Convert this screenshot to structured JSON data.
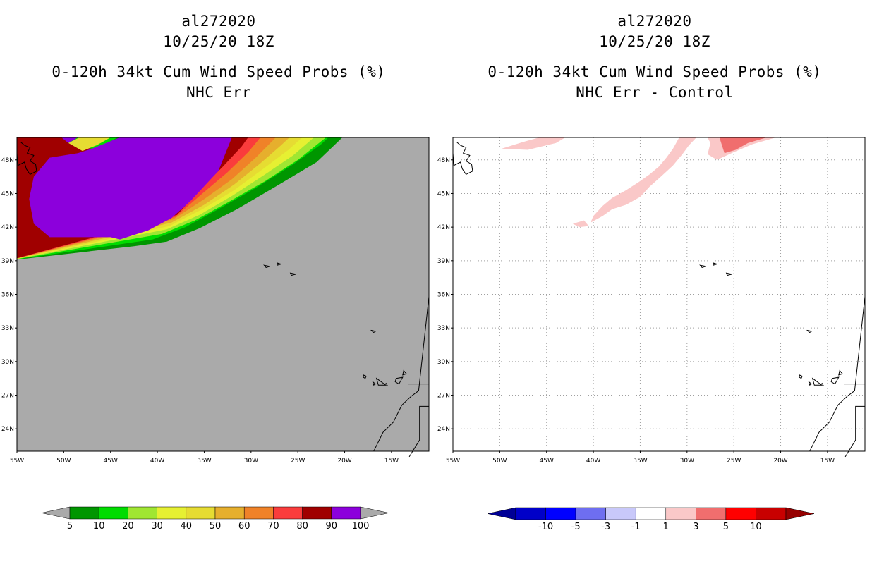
{
  "chart_data": [
    {
      "type": "heatmap",
      "storm_id": "al272020",
      "datetime": "10/25/20 18Z",
      "title": "0-120h 34kt Cum Wind Speed Probs (%)",
      "subtitle": "NHC Err",
      "background_color": "#aaaaaa",
      "x_ticks": [
        "55W",
        "50W",
        "45W",
        "40W",
        "35W",
        "30W",
        "25W",
        "20W",
        "15W"
      ],
      "y_ticks": [
        "48N",
        "45N",
        "42N",
        "39N",
        "36N",
        "33N",
        "30N",
        "27N",
        "24N"
      ],
      "xlim_deg_west": [
        55,
        11
      ],
      "ylim_deg_north": [
        22,
        50
      ],
      "grid": false,
      "colorbar": {
        "labels": [
          "5",
          "10",
          "20",
          "30",
          "40",
          "50",
          "60",
          "70",
          "80",
          "90",
          "100"
        ],
        "colors": [
          "#009600",
          "#00dc00",
          "#a0e632",
          "#e6f032",
          "#e6dc32",
          "#e6af2d",
          "#f08228",
          "#fa3c3c",
          "#a00000",
          "#8c00dc"
        ],
        "under_color": "#aaaaaa",
        "over_color": "#aaaaaa"
      },
      "probability_bands_pct": [
        {
          "level": "100",
          "color": "#8c00dc"
        },
        {
          "level": "90",
          "color": "#a00000"
        },
        {
          "level": "80",
          "color": "#fa3c3c"
        },
        {
          "level": "70",
          "color": "#f08228"
        },
        {
          "level": "60",
          "color": "#e6af2d"
        },
        {
          "level": "50",
          "color": "#e6dc32"
        },
        {
          "level": "40",
          "color": "#e6f032"
        },
        {
          "level": "30",
          "color": "#a0e632"
        },
        {
          "level": "20",
          "color": "#00dc00"
        },
        {
          "level": "10",
          "color": "#009600"
        }
      ]
    },
    {
      "type": "heatmap",
      "storm_id": "al272020",
      "datetime": "10/25/20 18Z",
      "title": "0-120h 34kt Cum Wind Speed Probs (%)",
      "subtitle": "NHC Err - Control",
      "background_color": "#ffffff",
      "x_ticks": [
        "55W",
        "50W",
        "45W",
        "40W",
        "35W",
        "30W",
        "25W",
        "20W",
        "15W"
      ],
      "y_ticks": [
        "48N",
        "45N",
        "42N",
        "39N",
        "36N",
        "33N",
        "30N",
        "27N",
        "24N"
      ],
      "xlim_deg_west": [
        55,
        11
      ],
      "ylim_deg_north": [
        22,
        50
      ],
      "grid": true,
      "colorbar": {
        "labels": [
          "-10",
          "-5",
          "-3",
          "-1",
          "1",
          "3",
          "5",
          "10"
        ],
        "colors": [
          "#0000c8",
          "#0000ff",
          "#6e6ef0",
          "#c8c8fa",
          "#ffffff",
          "#fac8c8",
          "#f06e6e",
          "#ff0000",
          "#c80000"
        ],
        "under_color": "#000096",
        "over_color": "#960000"
      },
      "difference_bands": [
        {
          "range": "1 to 3",
          "color": "#fac8c8"
        },
        {
          "range": "3 to 5",
          "color": "#f06e6e"
        }
      ]
    }
  ]
}
